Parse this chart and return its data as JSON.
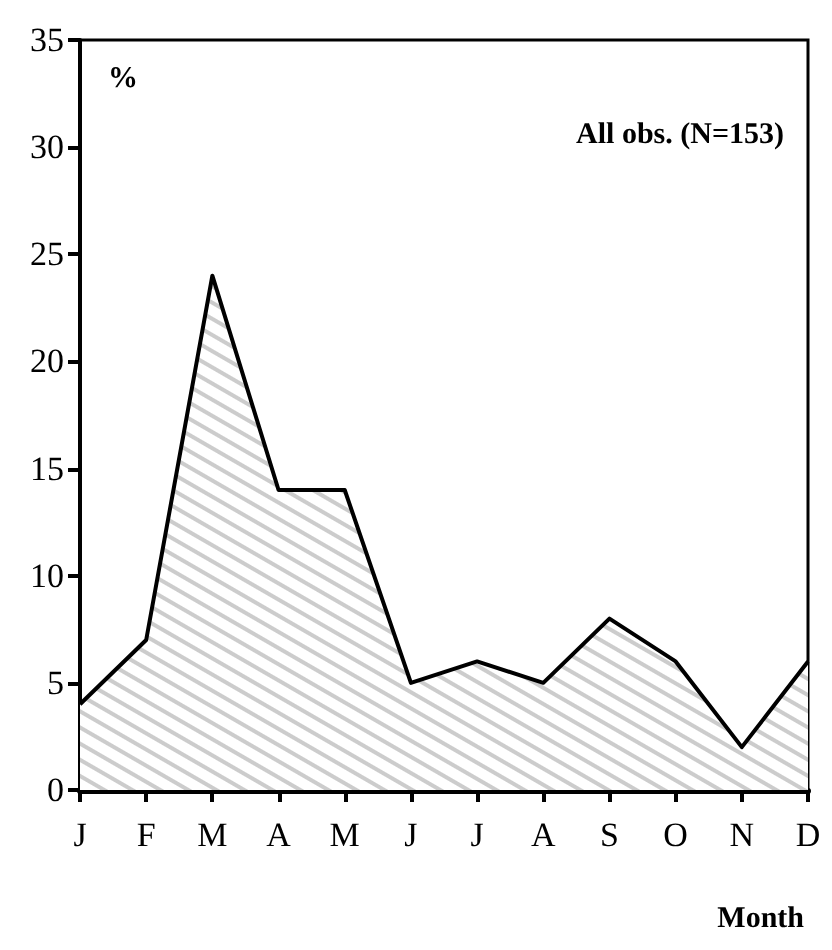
{
  "chart_data": {
    "type": "area",
    "categories": [
      "J",
      "F",
      "M",
      "A",
      "M",
      "J",
      "J",
      "A",
      "S",
      "O",
      "N",
      "D"
    ],
    "values": [
      4,
      7,
      24,
      14,
      14,
      5,
      6,
      5,
      8,
      6,
      2,
      6
    ],
    "color": "#000000",
    "ylim": [
      0,
      35
    ],
    "yticks": [
      0,
      5,
      10,
      15,
      20,
      25,
      30,
      35
    ],
    "ylabel": "%",
    "xlabel": "Month",
    "annotations": [
      "All obs. (N=153)"
    ]
  }
}
